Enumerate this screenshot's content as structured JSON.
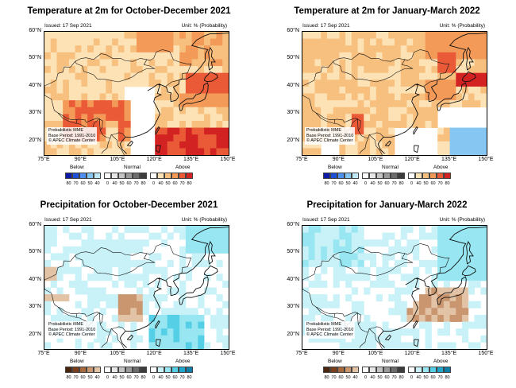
{
  "issued": "Issued: 17 Sep 2021",
  "unit": "Unit: % (Probability)",
  "info_lines": [
    "Probabilistic MME",
    "Base Period: 1991-2010",
    "© APEC Climate Center"
  ],
  "lon_labels": [
    "75°E",
    "90°E",
    "105°E",
    "120°E",
    "135°E",
    "150°E"
  ],
  "lat_labels": [
    "60°N",
    "50°N",
    "40°N",
    "30°N",
    "20°N"
  ],
  "legend": {
    "below": "Below",
    "normal": "Normal",
    "above": "Above",
    "below_nums": [
      "80",
      "70",
      "60",
      "50",
      "40"
    ],
    "normal_nums": [
      "0",
      "40",
      "50",
      "60",
      "70",
      "80"
    ],
    "above_nums": [
      "0",
      "40",
      "50",
      "60",
      "70",
      "80"
    ]
  },
  "panels": [
    {
      "title": "Temperature at 2m for October-December 2021",
      "kind": "temp"
    },
    {
      "title": "Temperature at 2m for January-March 2022",
      "kind": "temp"
    },
    {
      "title": "Precipitation for October-December 2021",
      "kind": "prec"
    },
    {
      "title": "Precipitation for January-March 2022",
      "kind": "prec"
    }
  ],
  "colors": {
    "temp_below": [
      "#0d1aa8",
      "#1e4fd6",
      "#4f8ff0",
      "#86c6f2",
      "#bfe9f7"
    ],
    "temp_above": [
      "#fde2b6",
      "#f7c07e",
      "#f39a58",
      "#ea5a37",
      "#d32222"
    ],
    "prec_below": [
      "#4b260e",
      "#7a3f1a",
      "#a9693e",
      "#c99670",
      "#e3c3a6"
    ],
    "prec_above": [
      "#c8f2f8",
      "#97e6f1",
      "#55cfe6",
      "#1fa8cc",
      "#0f7fa8"
    ],
    "normal": [
      "#ffffff",
      "#e6e6e6",
      "#c4c4c4",
      "#9a9a9a",
      "#6c6c6c",
      "#3c3c3c"
    ]
  }
}
